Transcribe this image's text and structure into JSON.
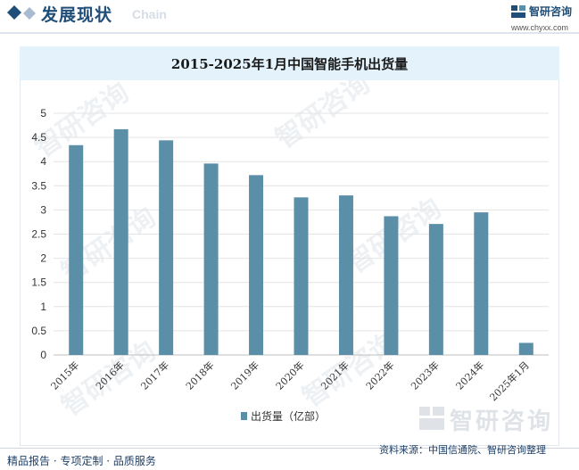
{
  "header": {
    "title": "发展现状",
    "subtitle": "Chain",
    "brand_name": "智研咨询",
    "brand_url": "www.chyxx.com",
    "accent_color": "#1f4e79"
  },
  "chart_data": {
    "type": "bar",
    "title": "2015-2025年1月中国智能手机出货量",
    "categories": [
      "2015年",
      "2016年",
      "2017年",
      "2018年",
      "2019年",
      "2020年",
      "2021年",
      "2022年",
      "2023年",
      "2024年",
      "2025年1月"
    ],
    "series": [
      {
        "name": "出货量（亿部）",
        "values": [
          4.34,
          4.67,
          4.44,
          3.96,
          3.72,
          3.26,
          3.3,
          2.87,
          2.71,
          2.95,
          0.25
        ],
        "color": "#5b8fa8"
      }
    ],
    "ylim": [
      0,
      5
    ],
    "yticks": [
      "0",
      "0.5",
      "1",
      "1.5",
      "2",
      "2.5",
      "3",
      "3.5",
      "4",
      "4.5",
      "5"
    ],
    "xlabel": "",
    "ylabel": "",
    "grid": true,
    "legend": "bottom-center"
  },
  "footer": {
    "left": "精品报告 · 专项定制 · 品质服务",
    "source": "资料来源：中国信通院、智研咨询整理",
    "watermark": "智研咨询"
  }
}
